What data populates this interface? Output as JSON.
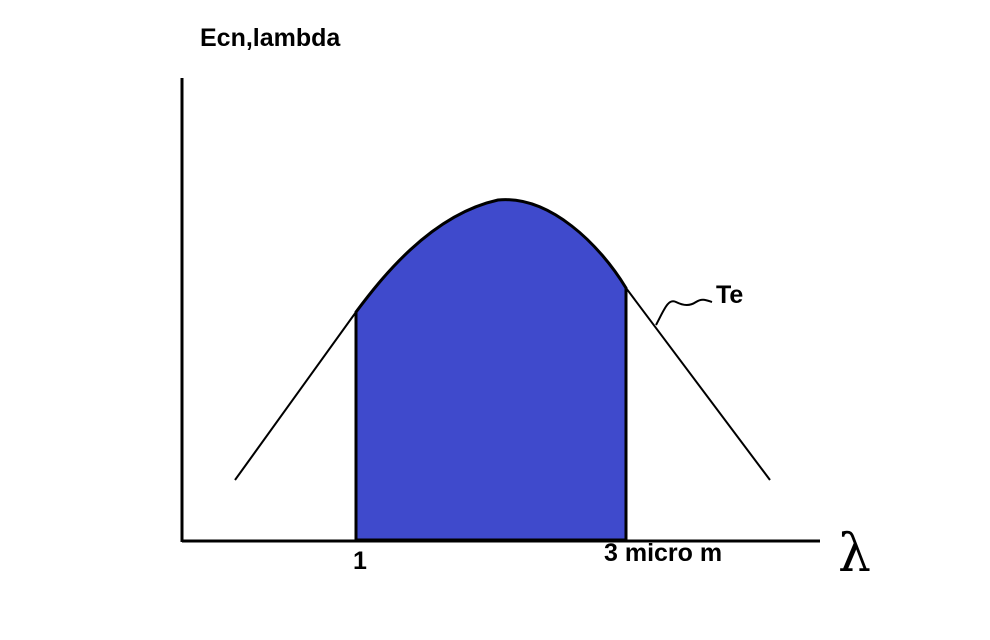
{
  "y_axis_label": "Ecn,lambda",
  "x_axis_symbol": "λ",
  "curve_label": "Te",
  "x_marks": [
    {
      "label": "1"
    },
    {
      "label": "3 micro m"
    }
  ],
  "colors": {
    "background": "#ffffff",
    "ink": "#000000",
    "shaded_region": "#3f4acc"
  }
}
